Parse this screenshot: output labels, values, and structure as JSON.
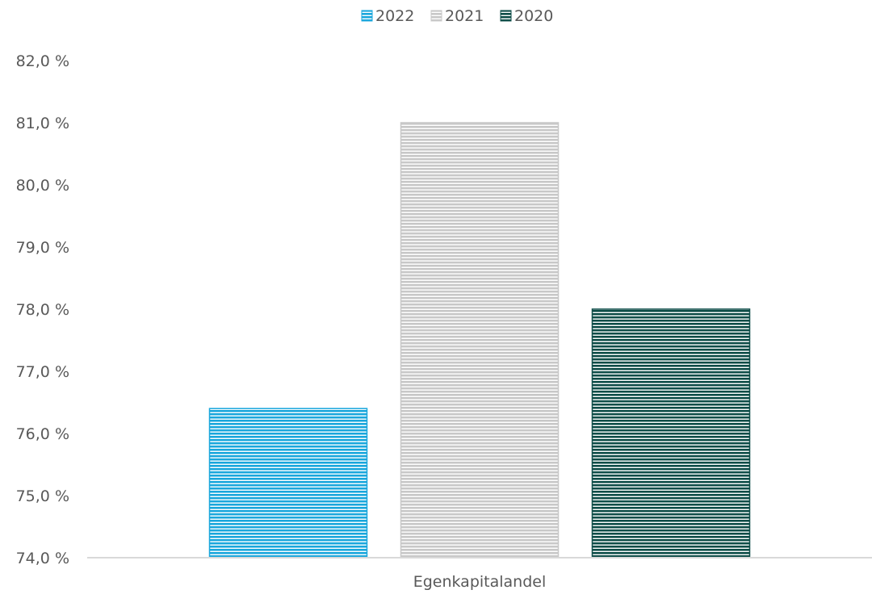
{
  "chart_data": {
    "type": "bar",
    "categories": [
      "Egenkapitalandel"
    ],
    "series": [
      {
        "name": "2022",
        "values": [
          76.4
        ],
        "color": "#1aa7dc"
      },
      {
        "name": "2021",
        "values": [
          81.0
        ],
        "color": "#c8c8c8"
      },
      {
        "name": "2020",
        "values": [
          78.0
        ],
        "color": "#0e4d48"
      }
    ],
    "ylim": [
      74.0,
      82.0
    ],
    "ytick_step": 1.0,
    "ytick_labels": [
      "74,0 %",
      "75,0 %",
      "76,0 %",
      "77,0 %",
      "78,0 %",
      "79,0 %",
      "80,0 %",
      "81,0 %",
      "82,0 %"
    ],
    "legend_position": "top",
    "grid": false,
    "title": "",
    "xlabel": "",
    "ylabel": ""
  }
}
